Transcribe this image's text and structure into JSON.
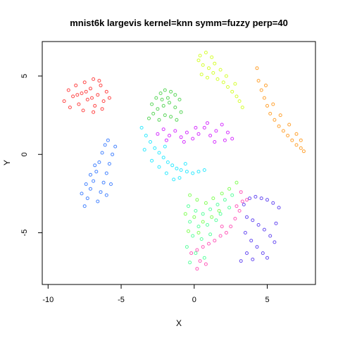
{
  "chart_data": {
    "type": "scatter",
    "title": "mnist6k largevis kernel=knn symm=fuzzy perp=40",
    "xlabel": "X",
    "ylabel": "Y",
    "xlim": [
      -10.4,
      8.3
    ],
    "ylim": [
      -8.3,
      7.2
    ],
    "xticks": [
      -10,
      -5,
      0,
      5
    ],
    "yticks": [
      -5,
      0,
      5
    ],
    "grid": false,
    "legend": "none",
    "point_style": "open circles, semi-transparent",
    "clusters": [
      {
        "color": "#ff1a1a",
        "points": [
          [
            -8.9,
            3.4
          ],
          [
            -8.6,
            4.1
          ],
          [
            -8.3,
            3.7
          ],
          [
            -8.1,
            4.4
          ],
          [
            -7.9,
            3.2
          ],
          [
            -7.7,
            3.9
          ],
          [
            -7.5,
            4.6
          ],
          [
            -7.3,
            3.5
          ],
          [
            -7.1,
            4.2
          ],
          [
            -6.9,
            4.8
          ],
          [
            -6.8,
            3.1
          ],
          [
            -6.6,
            3.8
          ],
          [
            -6.4,
            4.4
          ],
          [
            -6.2,
            3.4
          ],
          [
            -6.0,
            4.0
          ],
          [
            -5.8,
            3.6
          ],
          [
            -8.5,
            3.0
          ],
          [
            -7.6,
            2.8
          ],
          [
            -6.9,
            2.7
          ],
          [
            -6.3,
            2.9
          ],
          [
            -7.0,
            3.6
          ],
          [
            -7.4,
            4.0
          ],
          [
            -8.0,
            3.8
          ],
          [
            -6.5,
            4.7
          ]
        ]
      },
      {
        "color": "#ff8c00",
        "points": [
          [
            4.3,
            5.5
          ],
          [
            4.4,
            4.7
          ],
          [
            4.6,
            4.1
          ],
          [
            4.8,
            3.6
          ],
          [
            5.0,
            3.1
          ],
          [
            5.2,
            2.6
          ],
          [
            5.5,
            2.2
          ],
          [
            5.8,
            1.8
          ],
          [
            6.1,
            1.5
          ],
          [
            6.4,
            1.2
          ],
          [
            6.7,
            0.9
          ],
          [
            7.0,
            0.6
          ],
          [
            7.3,
            0.4
          ],
          [
            7.5,
            0.2
          ],
          [
            4.9,
            4.4
          ],
          [
            5.4,
            3.2
          ],
          [
            5.9,
            2.5
          ],
          [
            6.5,
            1.9
          ],
          [
            7.0,
            1.3
          ],
          [
            7.3,
            0.9
          ]
        ]
      },
      {
        "color": "#ccff00",
        "points": [
          [
            0.4,
            6.3
          ],
          [
            0.8,
            6.5
          ],
          [
            1.2,
            6.2
          ],
          [
            0.6,
            5.7
          ],
          [
            1.0,
            5.5
          ],
          [
            1.4,
            5.8
          ],
          [
            0.5,
            5.1
          ],
          [
            0.9,
            4.9
          ],
          [
            1.3,
            5.2
          ],
          [
            1.6,
            4.8
          ],
          [
            2.0,
            4.6
          ],
          [
            2.3,
            4.3
          ],
          [
            2.6,
            4.0
          ],
          [
            2.9,
            3.7
          ],
          [
            3.1,
            3.4
          ],
          [
            3.3,
            3.0
          ],
          [
            2.2,
            5.0
          ],
          [
            2.8,
            4.5
          ],
          [
            1.8,
            5.4
          ],
          [
            0.3,
            6.0
          ]
        ]
      },
      {
        "color": "#33cc33",
        "points": [
          [
            -2.9,
            3.2
          ],
          [
            -2.6,
            3.6
          ],
          [
            -2.3,
            3.9
          ],
          [
            -2.0,
            4.1
          ],
          [
            -1.6,
            4.0
          ],
          [
            -1.3,
            3.8
          ],
          [
            -1.0,
            3.5
          ],
          [
            -2.8,
            2.6
          ],
          [
            -2.5,
            2.9
          ],
          [
            -2.1,
            3.1
          ],
          [
            -1.7,
            3.3
          ],
          [
            -1.3,
            3.0
          ],
          [
            -0.9,
            2.7
          ],
          [
            -2.4,
            2.2
          ],
          [
            -2.0,
            2.5
          ],
          [
            -1.6,
            2.4
          ],
          [
            -1.2,
            2.2
          ],
          [
            -3.1,
            2.3
          ],
          [
            -1.8,
            3.6
          ],
          [
            -2.2,
            3.5
          ]
        ]
      },
      {
        "color": "#cc00ff",
        "points": [
          [
            -2.5,
            1.3
          ],
          [
            -2.1,
            1.6
          ],
          [
            -1.7,
            1.2
          ],
          [
            -1.3,
            1.5
          ],
          [
            -0.9,
            1.1
          ],
          [
            -0.5,
            1.4
          ],
          [
            -0.1,
            1.0
          ],
          [
            0.3,
            1.3
          ],
          [
            0.7,
            1.7
          ],
          [
            1.1,
            1.2
          ],
          [
            1.5,
            1.5
          ],
          [
            1.9,
            1.9
          ],
          [
            2.3,
            1.4
          ],
          [
            2.6,
            1.0
          ],
          [
            0.9,
            2.0
          ],
          [
            0.1,
            1.7
          ],
          [
            -0.7,
            0.8
          ],
          [
            1.4,
            0.8
          ],
          [
            2.1,
            0.9
          ],
          [
            -1.9,
            0.9
          ]
        ]
      },
      {
        "color": "#00e5ff",
        "points": [
          [
            -3.6,
            1.7
          ],
          [
            -3.3,
            1.2
          ],
          [
            -3.0,
            0.8
          ],
          [
            -2.7,
            0.4
          ],
          [
            -2.4,
            0.1
          ],
          [
            -2.1,
            -0.2
          ],
          [
            -1.8,
            -0.5
          ],
          [
            -1.5,
            -0.7
          ],
          [
            -1.2,
            -0.9
          ],
          [
            -0.9,
            -1.0
          ],
          [
            -0.5,
            -1.1
          ],
          [
            -0.1,
            -1.2
          ],
          [
            0.3,
            -1.1
          ],
          [
            0.7,
            -1.0
          ],
          [
            -2.9,
            -0.4
          ],
          [
            -2.4,
            -0.8
          ],
          [
            -1.9,
            -1.2
          ],
          [
            -1.4,
            -1.6
          ],
          [
            -1.0,
            -1.5
          ],
          [
            -0.6,
            -0.6
          ],
          [
            -3.4,
            0.3
          ],
          [
            -2.0,
            0.5
          ]
        ]
      },
      {
        "color": "#1a66ff",
        "points": [
          [
            -7.5,
            -3.3
          ],
          [
            -7.3,
            -2.8
          ],
          [
            -7.1,
            -2.2
          ],
          [
            -6.9,
            -1.7
          ],
          [
            -6.7,
            -1.1
          ],
          [
            -6.5,
            -0.5
          ],
          [
            -6.3,
            0.1
          ],
          [
            -6.1,
            0.6
          ],
          [
            -6.6,
            -3.0
          ],
          [
            -6.4,
            -2.4
          ],
          [
            -6.2,
            -1.8
          ],
          [
            -6.0,
            -1.2
          ],
          [
            -5.8,
            -0.6
          ],
          [
            -5.6,
            0.0
          ],
          [
            -5.4,
            0.5
          ],
          [
            -7.7,
            -2.5
          ],
          [
            -7.4,
            -1.9
          ],
          [
            -7.1,
            -1.3
          ],
          [
            -6.8,
            -0.7
          ],
          [
            -6.0,
            -2.6
          ],
          [
            -5.7,
            -1.9
          ],
          [
            -5.9,
            0.9
          ]
        ]
      },
      {
        "color": "#4422ee",
        "points": [
          [
            3.4,
            -3.2
          ],
          [
            3.8,
            -2.8
          ],
          [
            4.2,
            -2.7
          ],
          [
            4.6,
            -2.8
          ],
          [
            5.0,
            -2.9
          ],
          [
            5.4,
            -3.1
          ],
          [
            5.8,
            -3.4
          ],
          [
            3.6,
            -4.0
          ],
          [
            4.0,
            -4.2
          ],
          [
            4.4,
            -4.5
          ],
          [
            4.8,
            -4.8
          ],
          [
            5.2,
            -5.2
          ],
          [
            5.5,
            -5.6
          ],
          [
            3.5,
            -5.0
          ],
          [
            3.9,
            -5.5
          ],
          [
            4.3,
            -5.9
          ],
          [
            4.7,
            -6.3
          ],
          [
            5.0,
            -6.6
          ],
          [
            3.6,
            -6.3
          ],
          [
            4.0,
            -6.7
          ],
          [
            3.2,
            -6.8
          ],
          [
            5.6,
            -4.4
          ]
        ]
      },
      {
        "color": "#ff33aa",
        "points": [
          [
            3.2,
            -2.4
          ],
          [
            3.3,
            -3.0
          ],
          [
            3.1,
            -3.6
          ],
          [
            2.8,
            -4.1
          ],
          [
            2.5,
            -4.6
          ],
          [
            2.2,
            -5.0
          ],
          [
            1.8,
            -5.2
          ],
          [
            1.4,
            -5.5
          ],
          [
            1.0,
            -5.7
          ],
          [
            0.6,
            -5.9
          ],
          [
            0.2,
            -6.1
          ],
          [
            -0.2,
            -6.3
          ],
          [
            0.4,
            -6.8
          ],
          [
            0.8,
            -7.0
          ],
          [
            0.2,
            -7.3
          ],
          [
            3.6,
            -2.9
          ],
          [
            2.9,
            -3.3
          ],
          [
            1.9,
            -4.6
          ]
        ]
      },
      {
        "color": "#33ff88",
        "points": [
          [
            -0.4,
            -3.3
          ],
          [
            0.1,
            -3.6
          ],
          [
            0.6,
            -3.8
          ],
          [
            1.1,
            -3.5
          ],
          [
            1.6,
            -3.2
          ],
          [
            2.1,
            -2.9
          ],
          [
            2.6,
            -2.6
          ],
          [
            -0.3,
            -4.3
          ],
          [
            0.3,
            -4.6
          ],
          [
            0.9,
            -4.5
          ],
          [
            1.5,
            -4.2
          ],
          [
            -0.1,
            -5.2
          ],
          [
            0.5,
            -5.4
          ],
          [
            1.1,
            -5.1
          ],
          [
            -0.5,
            -5.9
          ],
          [
            0.1,
            -6.3
          ],
          [
            0.7,
            -6.6
          ],
          [
            -0.3,
            -6.9
          ],
          [
            1.8,
            -3.8
          ],
          [
            2.4,
            -3.4
          ]
        ]
      },
      {
        "color": "#66ff33",
        "points": [
          [
            -0.3,
            -2.6
          ],
          [
            0.2,
            -2.9
          ],
          [
            0.8,
            -3.1
          ],
          [
            1.3,
            -2.8
          ],
          [
            1.9,
            -2.5
          ],
          [
            2.4,
            -2.2
          ],
          [
            2.9,
            -1.8
          ],
          [
            -0.6,
            -3.8
          ],
          [
            0.0,
            -4.0
          ],
          [
            0.6,
            -4.3
          ],
          [
            1.2,
            -4.0
          ],
          [
            1.7,
            -3.6
          ],
          [
            -0.4,
            -4.9
          ],
          [
            0.3,
            -5.0
          ]
        ]
      }
    ]
  }
}
